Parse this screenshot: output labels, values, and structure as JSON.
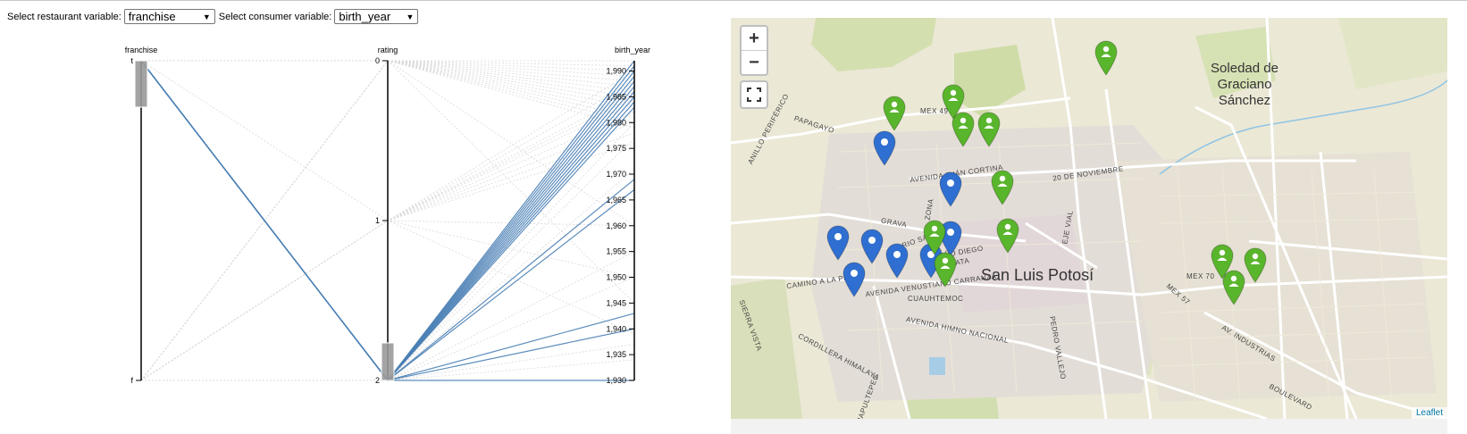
{
  "controls": {
    "restaurant_label": "Select restaurant variable:",
    "restaurant_value": "franchise",
    "consumer_label": "Select consumer variable:",
    "consumer_value": "birth_year"
  },
  "chart_data": {
    "type": "parallel-coordinates",
    "axes": [
      {
        "name": "franchise",
        "ticks": [
          "t",
          "f"
        ]
      },
      {
        "name": "rating",
        "ticks": [
          "0",
          "1",
          "2"
        ]
      },
      {
        "name": "birth_year",
        "ticks": [
          "1,990",
          "1,985",
          "1,980",
          "1,975",
          "1,970",
          "1,965",
          "1,960",
          "1,955",
          "1,950",
          "1,945",
          "1,940",
          "1,935",
          "1,930"
        ]
      }
    ],
    "brushes": [
      {
        "axis": "franchise",
        "selected": "t"
      },
      {
        "axis": "rating",
        "selected": "2"
      }
    ],
    "highlighted_lines": [
      {
        "franchise": "t",
        "rating": 2,
        "birth_year": 1992
      },
      {
        "franchise": "t",
        "rating": 2,
        "birth_year": 1991
      },
      {
        "franchise": "t",
        "rating": 2,
        "birth_year": 1990
      },
      {
        "franchise": "t",
        "rating": 2,
        "birth_year": 1989
      },
      {
        "franchise": "t",
        "rating": 2,
        "birth_year": 1988
      },
      {
        "franchise": "t",
        "rating": 2,
        "birth_year": 1987
      },
      {
        "franchise": "t",
        "rating": 2,
        "birth_year": 1986
      },
      {
        "franchise": "t",
        "rating": 2,
        "birth_year": 1985
      },
      {
        "franchise": "t",
        "rating": 2,
        "birth_year": 1984
      },
      {
        "franchise": "t",
        "rating": 2,
        "birth_year": 1983
      },
      {
        "franchise": "t",
        "rating": 2,
        "birth_year": 1969
      },
      {
        "franchise": "t",
        "rating": 2,
        "birth_year": 1967
      },
      {
        "franchise": "t",
        "rating": 2,
        "birth_year": 1943
      },
      {
        "franchise": "t",
        "rating": 2,
        "birth_year": 1940
      },
      {
        "franchise": "t",
        "rating": 2,
        "birth_year": 1930
      }
    ],
    "background_lines": [
      {
        "franchise": "f",
        "rating": 0,
        "birth_year": 1992
      },
      {
        "franchise": "f",
        "rating": 0,
        "birth_year": 1991
      },
      {
        "franchise": "f",
        "rating": 0,
        "birth_year": 1990
      },
      {
        "franchise": "f",
        "rating": 0,
        "birth_year": 1989
      },
      {
        "franchise": "f",
        "rating": 0,
        "birth_year": 1988
      },
      {
        "franchise": "t",
        "rating": 0,
        "birth_year": 1987
      },
      {
        "franchise": "f",
        "rating": 0,
        "birth_year": 1986
      },
      {
        "franchise": "f",
        "rating": 0,
        "birth_year": 1985
      },
      {
        "franchise": "f",
        "rating": 0,
        "birth_year": 1984
      },
      {
        "franchise": "t",
        "rating": 0,
        "birth_year": 1983
      },
      {
        "franchise": "f",
        "rating": 0,
        "birth_year": 1982
      },
      {
        "franchise": "f",
        "rating": 0,
        "birth_year": 1981
      },
      {
        "franchise": "t",
        "rating": 0,
        "birth_year": 1980
      },
      {
        "franchise": "f",
        "rating": 0,
        "birth_year": 1979
      },
      {
        "franchise": "f",
        "rating": 0,
        "birth_year": 1960
      },
      {
        "franchise": "f",
        "rating": 0,
        "birth_year": 1945
      },
      {
        "franchise": "f",
        "rating": 1,
        "birth_year": 1990
      },
      {
        "franchise": "f",
        "rating": 1,
        "birth_year": 1988
      },
      {
        "franchise": "f",
        "rating": 1,
        "birth_year": 1986
      },
      {
        "franchise": "t",
        "rating": 1,
        "birth_year": 1985
      },
      {
        "franchise": "f",
        "rating": 1,
        "birth_year": 1984
      },
      {
        "franchise": "f",
        "rating": 1,
        "birth_year": 1982
      },
      {
        "franchise": "f",
        "rating": 1,
        "birth_year": 1980
      },
      {
        "franchise": "f",
        "rating": 1,
        "birth_year": 1978
      },
      {
        "franchise": "f",
        "rating": 1,
        "birth_year": 1976
      },
      {
        "franchise": "f",
        "rating": 1,
        "birth_year": 1960
      },
      {
        "franchise": "f",
        "rating": 1,
        "birth_year": 1950
      },
      {
        "franchise": "f",
        "rating": 1,
        "birth_year": 1939
      },
      {
        "franchise": "f",
        "rating": 2,
        "birth_year": 1980
      },
      {
        "franchise": "f",
        "rating": 2,
        "birth_year": 1977
      },
      {
        "franchise": "f",
        "rating": 2,
        "birth_year": 1971
      },
      {
        "franchise": "f",
        "rating": 2,
        "birth_year": 1955
      },
      {
        "franchise": "f",
        "rating": 2,
        "birth_year": 1950
      },
      {
        "franchise": "f",
        "rating": 2,
        "birth_year": 1937
      },
      {
        "franchise": "f",
        "rating": 2,
        "birth_year": 1934
      }
    ],
    "colors": {
      "highlight": "#4a7fb5",
      "background": "#d9d9d9",
      "brush": "#9a9a9a"
    }
  },
  "map": {
    "zoom_in": "+",
    "zoom_out": "−",
    "attribution": "Leaflet",
    "labels": {
      "city": "San Luis Potosí",
      "soledad_1": "Soledad de",
      "soledad_2": "Graciano",
      "soledad_3": "Sánchez"
    },
    "streets": [
      "MEX 49",
      "PAPAGAYO",
      "ANILLO PERIFÉRICO",
      "AVENIDA JUÁN CORTINA",
      "20 DE NOVIEMBRE",
      "EJE VIAL",
      "GRAVA",
      "RIO SANTIAGO",
      "ZONA",
      "NIÑO DIEGO",
      "ZAPATA",
      "CAMINO A LA PRESA",
      "AVENIDA VENUSTIANO CARRANZA",
      "CUAUHTEMOC",
      "AVENIDA HIMNO NACIONAL",
      "SIERRA VISTA",
      "CORDILLERA HIMALAYA",
      "CHAPULTEPEC",
      "PEDRO VALLEJO",
      "MEX 70",
      "MEX 57",
      "AV. INDUSTRIAS",
      "BOULEVARD"
    ],
    "marker_colors": {
      "restaurant": "#2f6fd1",
      "consumer": "#59b52b"
    },
    "restaurant_markers": 8,
    "consumer_markers": 12
  }
}
